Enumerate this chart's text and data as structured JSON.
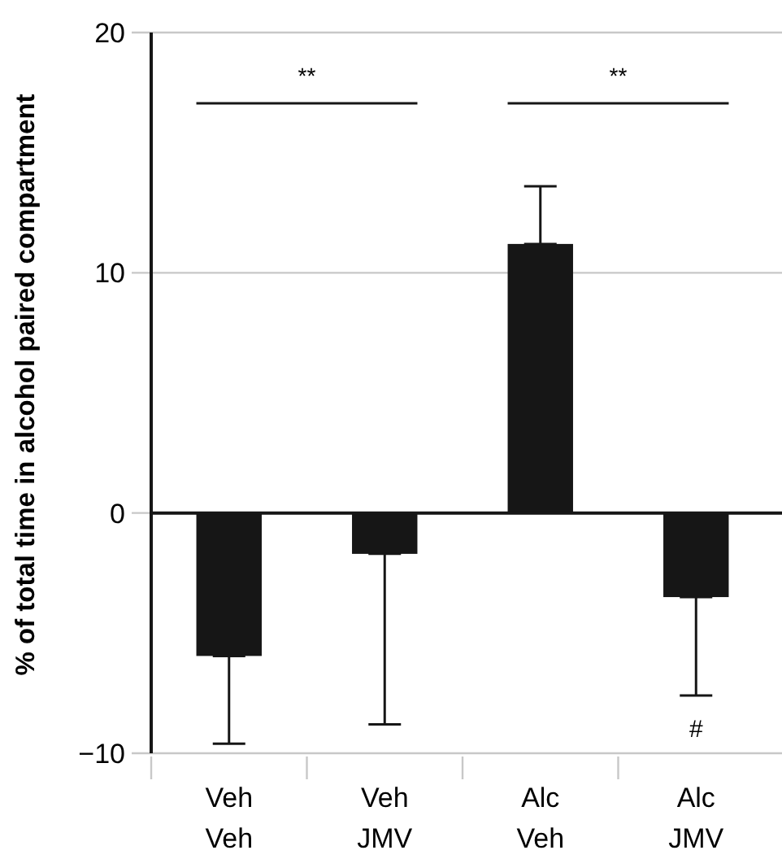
{
  "chart_data": {
    "type": "bar",
    "ylabel": "% of total time in alcohol paired compartment",
    "categories": [
      "Veh\nVeh",
      "Veh\nJMV",
      "Alc\nVeh",
      "Alc\nJMV"
    ],
    "values": [
      -5.95,
      -1.7,
      11.2,
      -3.5
    ],
    "errors": [
      [
        -9.6,
        -5.95
      ],
      [
        -8.8,
        -1.7
      ],
      [
        11.2,
        13.6
      ],
      [
        -7.6,
        -3.5
      ]
    ],
    "color": "#161616",
    "ylim": [
      -10,
      20
    ],
    "yticks": [
      -10,
      0,
      10,
      20
    ],
    "grid": "y",
    "annotations": [
      "**",
      "**",
      "#"
    ]
  }
}
